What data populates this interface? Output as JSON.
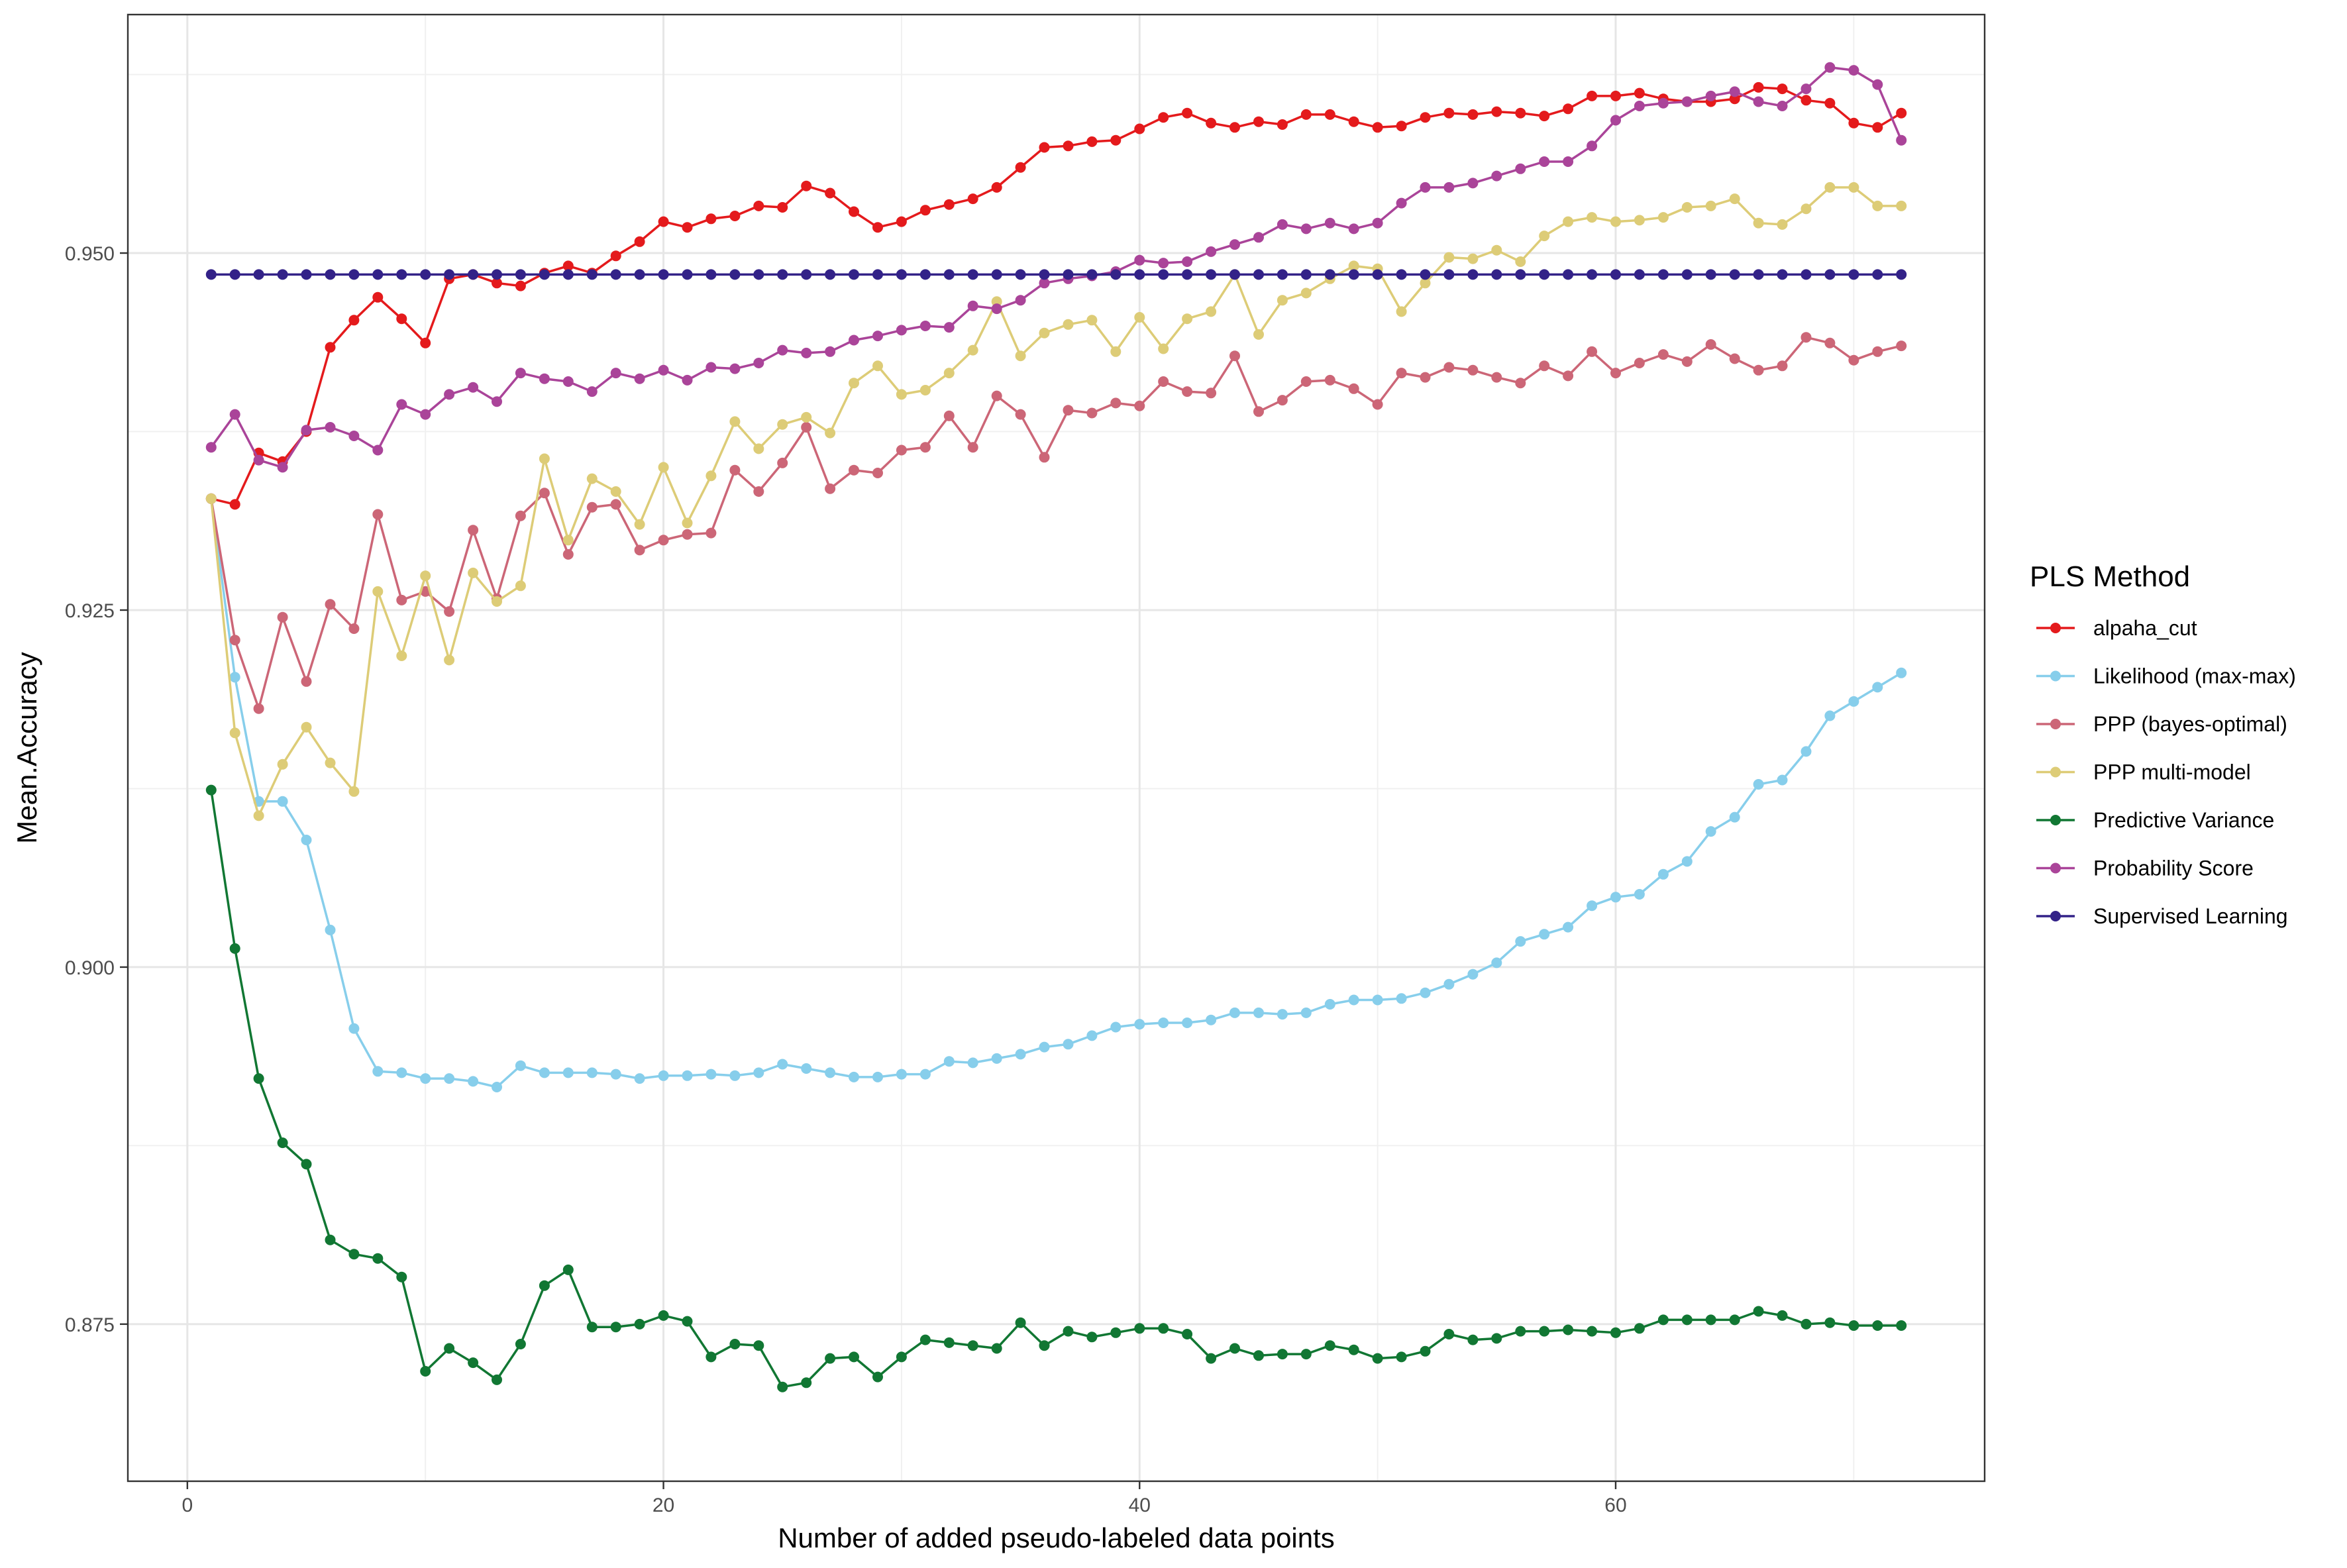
{
  "chart_data": {
    "type": "line",
    "xlabel": "Number of added pseudo-labeled data points",
    "ylabel": "Mean.Accuracy",
    "xlim": [
      -2.5,
      75.5
    ],
    "ylim": [
      0.864,
      0.9667
    ],
    "x_ticks": [
      0,
      20,
      40,
      60
    ],
    "x_tick_labels": [
      "0",
      "20",
      "40",
      "60"
    ],
    "y_ticks": [
      0.875,
      0.9,
      0.925,
      0.95
    ],
    "y_tick_labels": [
      "0.875",
      "0.900",
      "0.925",
      "0.950"
    ],
    "grid": true,
    "legend": {
      "title": "PLS Method",
      "position": "right"
    },
    "x": [
      1,
      2,
      3,
      4,
      5,
      6,
      7,
      8,
      9,
      10,
      11,
      12,
      13,
      14,
      15,
      16,
      17,
      18,
      19,
      20,
      21,
      22,
      23,
      24,
      25,
      26,
      27,
      28,
      29,
      30,
      31,
      32,
      33,
      34,
      35,
      36,
      37,
      38,
      39,
      40,
      41,
      42,
      43,
      44,
      45,
      46,
      47,
      48,
      49,
      50,
      51,
      52,
      53,
      54,
      55,
      56,
      57,
      58,
      59,
      60,
      61,
      62,
      63,
      64,
      65,
      66,
      67,
      68,
      69,
      70,
      71,
      72
    ],
    "series": [
      {
        "name": "alpaha_cut",
        "color": "#e41a1c",
        "values": [
          0.9328,
          0.9324,
          0.936,
          0.9354,
          0.9375,
          0.9434,
          0.9453,
          0.9469,
          0.9454,
          0.9437,
          0.9482,
          0.9485,
          0.9479,
          0.9477,
          0.9486,
          0.9491,
          0.9486,
          0.9498,
          0.9508,
          0.9522,
          0.9518,
          0.9524,
          0.9526,
          0.9533,
          0.9532,
          0.9547,
          0.9542,
          0.9529,
          0.9518,
          0.9522,
          0.953,
          0.9534,
          0.9538,
          0.9546,
          0.956,
          0.9574,
          0.9575,
          0.9578,
          0.9579,
          0.9587,
          0.9595,
          0.9598,
          0.9591,
          0.9588,
          0.9592,
          0.959,
          0.9597,
          0.9597,
          0.9592,
          0.9588,
          0.9589,
          0.9595,
          0.9598,
          0.9597,
          0.9599,
          0.9598,
          0.9596,
          0.9601,
          0.961,
          0.961,
          0.9612,
          0.9608,
          0.9606,
          0.9606,
          0.9608,
          0.9616,
          0.9615,
          0.9607,
          0.9605,
          0.9591,
          0.9588,
          0.9598
        ]
      },
      {
        "name": "Likelihood (max-max)",
        "color": "#87ceeb",
        "values": [
          0.9328,
          0.9203,
          0.9116,
          0.9116,
          0.9089,
          0.9026,
          0.8957,
          0.8927,
          0.8926,
          0.8922,
          0.8922,
          0.892,
          0.8916,
          0.8931,
          0.8926,
          0.8926,
          0.8926,
          0.8925,
          0.8922,
          0.8924,
          0.8924,
          0.8925,
          0.8924,
          0.8926,
          0.8932,
          0.8929,
          0.8926,
          0.8923,
          0.8923,
          0.8925,
          0.8925,
          0.8934,
          0.8933,
          0.8936,
          0.8939,
          0.8944,
          0.8946,
          0.8952,
          0.8958,
          0.896,
          0.8961,
          0.8961,
          0.8963,
          0.8968,
          0.8968,
          0.8967,
          0.8968,
          0.8974,
          0.8977,
          0.8977,
          0.8978,
          0.8982,
          0.8988,
          0.8995,
          0.9003,
          0.9018,
          0.9023,
          0.9028,
          0.9043,
          0.9049,
          0.9051,
          0.9065,
          0.9074,
          0.9095,
          0.9105,
          0.9128,
          0.9131,
          0.9151,
          0.9176,
          0.9186,
          0.9196,
          0.9206
        ]
      },
      {
        "name": "PPP (bayes-optimal)",
        "color": "#cc6677",
        "values": [
          0.9328,
          0.9229,
          0.9181,
          0.9245,
          0.92,
          0.9254,
          0.9237,
          0.9317,
          0.9257,
          0.9263,
          0.9249,
          0.9306,
          0.9258,
          0.9316,
          0.9332,
          0.9289,
          0.9322,
          0.9324,
          0.9292,
          0.9299,
          0.9303,
          0.9304,
          0.9348,
          0.9333,
          0.9353,
          0.9378,
          0.9335,
          0.9348,
          0.9346,
          0.9362,
          0.9364,
          0.9386,
          0.9364,
          0.94,
          0.9387,
          0.9357,
          0.939,
          0.9388,
          0.9395,
          0.9393,
          0.941,
          0.9403,
          0.9402,
          0.9428,
          0.9389,
          0.9397,
          0.941,
          0.9411,
          0.9405,
          0.9394,
          0.9416,
          0.9413,
          0.942,
          0.9418,
          0.9413,
          0.9409,
          0.9421,
          0.9414,
          0.9431,
          0.9416,
          0.9423,
          0.9429,
          0.9424,
          0.9436,
          0.9426,
          0.9418,
          0.9421,
          0.9441,
          0.9437,
          0.9425,
          0.9431,
          0.9435
        ]
      },
      {
        "name": "PPP multi-model",
        "color": "#ddcc77",
        "values": [
          0.9328,
          0.9164,
          0.9106,
          0.9142,
          0.9168,
          0.9143,
          0.9123,
          0.9263,
          0.9218,
          0.9274,
          0.9215,
          0.9276,
          0.9256,
          0.9267,
          0.9356,
          0.9299,
          0.9342,
          0.9333,
          0.931,
          0.935,
          0.9311,
          0.9344,
          0.9382,
          0.9363,
          0.938,
          0.9385,
          0.9374,
          0.9409,
          0.9421,
          0.9401,
          0.9404,
          0.9416,
          0.9432,
          0.9466,
          0.9428,
          0.9444,
          0.945,
          0.9453,
          0.9431,
          0.9455,
          0.9433,
          0.9454,
          0.9459,
          0.9485,
          0.9443,
          0.9467,
          0.9472,
          0.9482,
          0.9491,
          0.9489,
          0.9459,
          0.9479,
          0.9497,
          0.9496,
          0.9502,
          0.9494,
          0.9512,
          0.9522,
          0.9525,
          0.9522,
          0.9523,
          0.9525,
          0.9532,
          0.9533,
          0.9538,
          0.9521,
          0.952,
          0.9531,
          0.9546,
          0.9546,
          0.9533,
          0.9533
        ]
      },
      {
        "name": "Predictive Variance",
        "color": "#117733",
        "values": [
          0.9124,
          0.9013,
          0.8922,
          0.8877,
          0.8862,
          0.8809,
          0.8799,
          0.8796,
          0.8783,
          0.8717,
          0.8733,
          0.8723,
          0.8711,
          0.8736,
          0.8777,
          0.8788,
          0.8748,
          0.8748,
          0.875,
          0.8756,
          0.8752,
          0.8727,
          0.8736,
          0.8735,
          0.8706,
          0.8709,
          0.8726,
          0.8727,
          0.8713,
          0.8727,
          0.8739,
          0.8737,
          0.8735,
          0.8733,
          0.8751,
          0.8735,
          0.8745,
          0.8741,
          0.8744,
          0.8747,
          0.8747,
          0.8743,
          0.8726,
          0.8733,
          0.8728,
          0.8729,
          0.8729,
          0.8735,
          0.8732,
          0.8726,
          0.8727,
          0.8731,
          0.8743,
          0.8739,
          0.874,
          0.8745,
          0.8745,
          0.8746,
          0.8745,
          0.8744,
          0.8747,
          0.8753,
          0.8753,
          0.8753,
          0.8753,
          0.8759,
          0.8756,
          0.875,
          0.8751,
          0.8749,
          0.8749,
          0.8749
        ]
      },
      {
        "name": "Probability Score",
        "color": "#aa4499",
        "values": [
          0.9364,
          0.9387,
          0.9355,
          0.935,
          0.9376,
          0.9378,
          0.9372,
          0.9362,
          0.9394,
          0.9387,
          0.9401,
          0.9406,
          0.9396,
          0.9416,
          0.9412,
          0.941,
          0.9403,
          0.9416,
          0.9412,
          0.9418,
          0.9411,
          0.942,
          0.9419,
          0.9423,
          0.9432,
          0.943,
          0.9431,
          0.9439,
          0.9442,
          0.9446,
          0.9449,
          0.9448,
          0.9463,
          0.9461,
          0.9467,
          0.9479,
          0.9482,
          0.9484,
          0.9487,
          0.9495,
          0.9493,
          0.9494,
          0.9501,
          0.9506,
          0.9511,
          0.952,
          0.9517,
          0.9521,
          0.9517,
          0.9521,
          0.9535,
          0.9546,
          0.9546,
          0.9549,
          0.9554,
          0.9559,
          0.9564,
          0.9564,
          0.9575,
          0.9593,
          0.9603,
          0.9605,
          0.9606,
          0.961,
          0.9613,
          0.9606,
          0.9603,
          0.9615,
          0.963,
          0.9628,
          0.9618,
          0.9579
        ]
      },
      {
        "name": "Supervised Learning",
        "color": "#332288",
        "values": [
          0.9485,
          0.9485,
          0.9485,
          0.9485,
          0.9485,
          0.9485,
          0.9485,
          0.9485,
          0.9485,
          0.9485,
          0.9485,
          0.9485,
          0.9485,
          0.9485,
          0.9485,
          0.9485,
          0.9485,
          0.9485,
          0.9485,
          0.9485,
          0.9485,
          0.9485,
          0.9485,
          0.9485,
          0.9485,
          0.9485,
          0.9485,
          0.9485,
          0.9485,
          0.9485,
          0.9485,
          0.9485,
          0.9485,
          0.9485,
          0.9485,
          0.9485,
          0.9485,
          0.9485,
          0.9485,
          0.9485,
          0.9485,
          0.9485,
          0.9485,
          0.9485,
          0.9485,
          0.9485,
          0.9485,
          0.9485,
          0.9485,
          0.9485,
          0.9485,
          0.9485,
          0.9485,
          0.9485,
          0.9485,
          0.9485,
          0.9485,
          0.9485,
          0.9485,
          0.9485,
          0.9485,
          0.9485,
          0.9485,
          0.9485,
          0.9485,
          0.9485,
          0.9485,
          0.9485,
          0.9485,
          0.9485,
          0.9485,
          0.9485
        ]
      }
    ]
  }
}
